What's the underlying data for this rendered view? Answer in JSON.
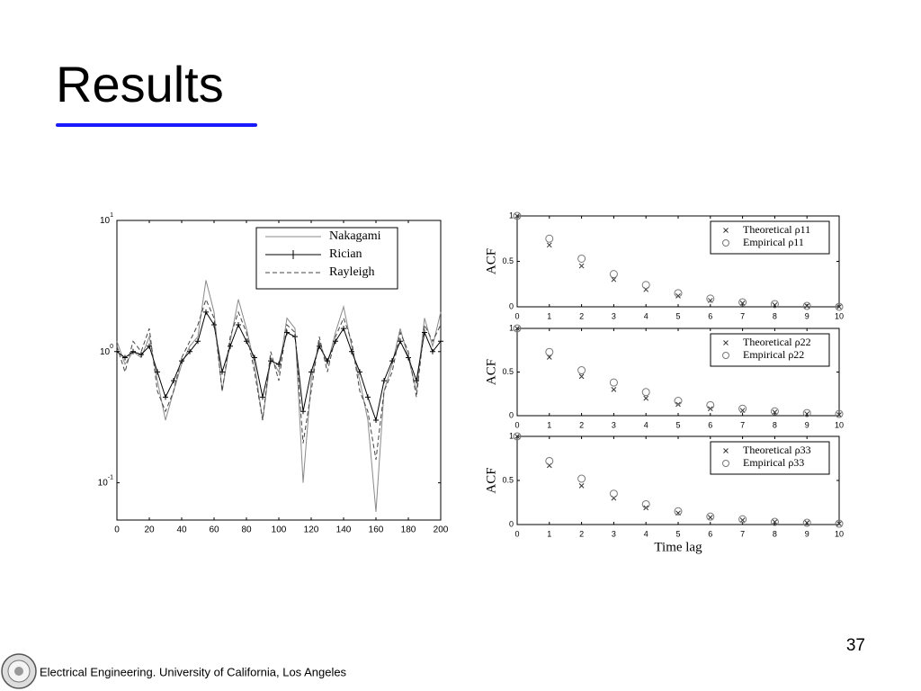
{
  "slide": {
    "title": "Results",
    "footer": "Electrical Engineering. University of California, Los Angeles",
    "page_number": "37"
  },
  "chart_data": [
    {
      "type": "line",
      "log_y": true,
      "legend": "upper right",
      "x": [
        0,
        5,
        10,
        15,
        20,
        25,
        30,
        35,
        40,
        45,
        50,
        55,
        60,
        65,
        70,
        75,
        80,
        85,
        90,
        95,
        100,
        105,
        110,
        115,
        120,
        125,
        130,
        135,
        140,
        145,
        150,
        155,
        160,
        165,
        170,
        175,
        180,
        185,
        190,
        195,
        200
      ],
      "xlim": [
        0,
        200
      ],
      "xticks": [
        0,
        20,
        40,
        60,
        80,
        100,
        120,
        140,
        160,
        180,
        200
      ],
      "ylim": [
        0.052,
        10
      ],
      "yticks": [
        {
          "value": 10,
          "label": "10^1"
        },
        {
          "value": 1,
          "label": "10^0"
        },
        {
          "value": 0.1,
          "label": "10^-1"
        }
      ],
      "series": [
        {
          "name": "Nakagami",
          "color": "#8a8a8a",
          "dash": "solid",
          "marker": "none",
          "values": [
            1.2,
            0.8,
            1.0,
            0.9,
            1.3,
            0.6,
            0.3,
            0.5,
            0.8,
            1.1,
            1.3,
            3.5,
            2.0,
            0.5,
            1.2,
            2.5,
            1.5,
            0.8,
            0.3,
            0.9,
            0.7,
            1.8,
            1.5,
            0.1,
            0.6,
            1.2,
            0.8,
            1.4,
            2.2,
            1.1,
            0.6,
            0.3,
            0.06,
            0.5,
            0.8,
            1.5,
            0.9,
            0.5,
            1.8,
            1.1,
            2.0
          ]
        },
        {
          "name": "Rician",
          "color": "#000000",
          "dash": "solid",
          "marker": "+",
          "values": [
            1.0,
            0.9,
            1.0,
            0.95,
            1.1,
            0.7,
            0.45,
            0.6,
            0.85,
            1.0,
            1.2,
            2.0,
            1.6,
            0.7,
            1.1,
            1.6,
            1.2,
            0.9,
            0.45,
            0.85,
            0.8,
            1.4,
            1.3,
            0.35,
            0.7,
            1.1,
            0.85,
            1.2,
            1.5,
            1.0,
            0.7,
            0.45,
            0.3,
            0.6,
            0.85,
            1.2,
            0.9,
            0.6,
            1.4,
            1.0,
            1.2
          ]
        },
        {
          "name": "Rayleigh",
          "color": "#444444",
          "dash": "dashed",
          "marker": "none",
          "values": [
            1.1,
            0.7,
            1.2,
            1.0,
            1.5,
            0.5,
            0.35,
            0.5,
            0.9,
            1.2,
            1.6,
            2.5,
            1.8,
            0.5,
            1.3,
            2.0,
            1.4,
            0.7,
            0.3,
            1.0,
            0.6,
            1.6,
            1.4,
            0.2,
            0.5,
            1.3,
            0.7,
            1.3,
            1.8,
            1.2,
            0.5,
            0.35,
            0.15,
            0.5,
            0.7,
            1.4,
            1.0,
            0.45,
            1.6,
            1.2,
            1.6
          ]
        }
      ]
    },
    {
      "type": "scatter",
      "ylabel": "ACF",
      "legend": "upper right",
      "x": [
        0,
        1,
        2,
        3,
        4,
        5,
        6,
        7,
        8,
        9,
        10
      ],
      "xlim": [
        0,
        10
      ],
      "xticks": [
        0,
        1,
        2,
        3,
        4,
        5,
        6,
        7,
        8,
        9,
        10
      ],
      "ylim": [
        0,
        1
      ],
      "yticks": [
        0,
        0.5,
        1
      ],
      "series": [
        {
          "name": "Theoretical ρ11",
          "color": "#333333",
          "marker": "x",
          "values": [
            1,
            0.68,
            0.45,
            0.3,
            0.19,
            0.12,
            0.07,
            0.04,
            0.02,
            0.01,
            0.0
          ]
        },
        {
          "name": "Empirical ρ11",
          "color": "#777777",
          "marker": "o",
          "values": [
            1,
            0.75,
            0.53,
            0.36,
            0.24,
            0.15,
            0.09,
            0.05,
            0.03,
            0.01,
            0.0
          ]
        }
      ]
    },
    {
      "type": "scatter",
      "ylabel": "ACF",
      "legend": "upper right",
      "x": [
        0,
        1,
        2,
        3,
        4,
        5,
        6,
        7,
        8,
        9,
        10
      ],
      "xlim": [
        0,
        10
      ],
      "xticks": [
        0,
        1,
        2,
        3,
        4,
        5,
        6,
        7,
        8,
        9,
        10
      ],
      "ylim": [
        0,
        1
      ],
      "yticks": [
        0,
        0.5,
        1
      ],
      "series": [
        {
          "name": "Theoretical ρ22",
          "color": "#333333",
          "marker": "x",
          "values": [
            1,
            0.67,
            0.45,
            0.3,
            0.2,
            0.13,
            0.08,
            0.06,
            0.04,
            0.02,
            0.01
          ]
        },
        {
          "name": "Empirical ρ22",
          "color": "#777777",
          "marker": "o",
          "values": [
            1,
            0.73,
            0.52,
            0.38,
            0.27,
            0.17,
            0.12,
            0.08,
            0.05,
            0.03,
            0.02
          ]
        }
      ]
    },
    {
      "type": "scatter",
      "ylabel": "ACF",
      "xlabel": "Time lag",
      "legend": "upper right",
      "x": [
        0,
        1,
        2,
        3,
        4,
        5,
        6,
        7,
        8,
        9,
        10
      ],
      "xlim": [
        0,
        10
      ],
      "xticks": [
        0,
        1,
        2,
        3,
        4,
        5,
        6,
        7,
        8,
        9,
        10
      ],
      "ylim": [
        0,
        1
      ],
      "yticks": [
        0,
        0.5,
        1
      ],
      "series": [
        {
          "name": "Theoretical ρ33",
          "color": "#333333",
          "marker": "x",
          "values": [
            1,
            0.67,
            0.44,
            0.3,
            0.19,
            0.13,
            0.08,
            0.05,
            0.03,
            0.02,
            0.01
          ]
        },
        {
          "name": "Empirical ρ33",
          "color": "#777777",
          "marker": "o",
          "values": [
            1,
            0.72,
            0.52,
            0.35,
            0.23,
            0.15,
            0.09,
            0.06,
            0.03,
            0.02,
            0.01
          ]
        }
      ]
    }
  ]
}
